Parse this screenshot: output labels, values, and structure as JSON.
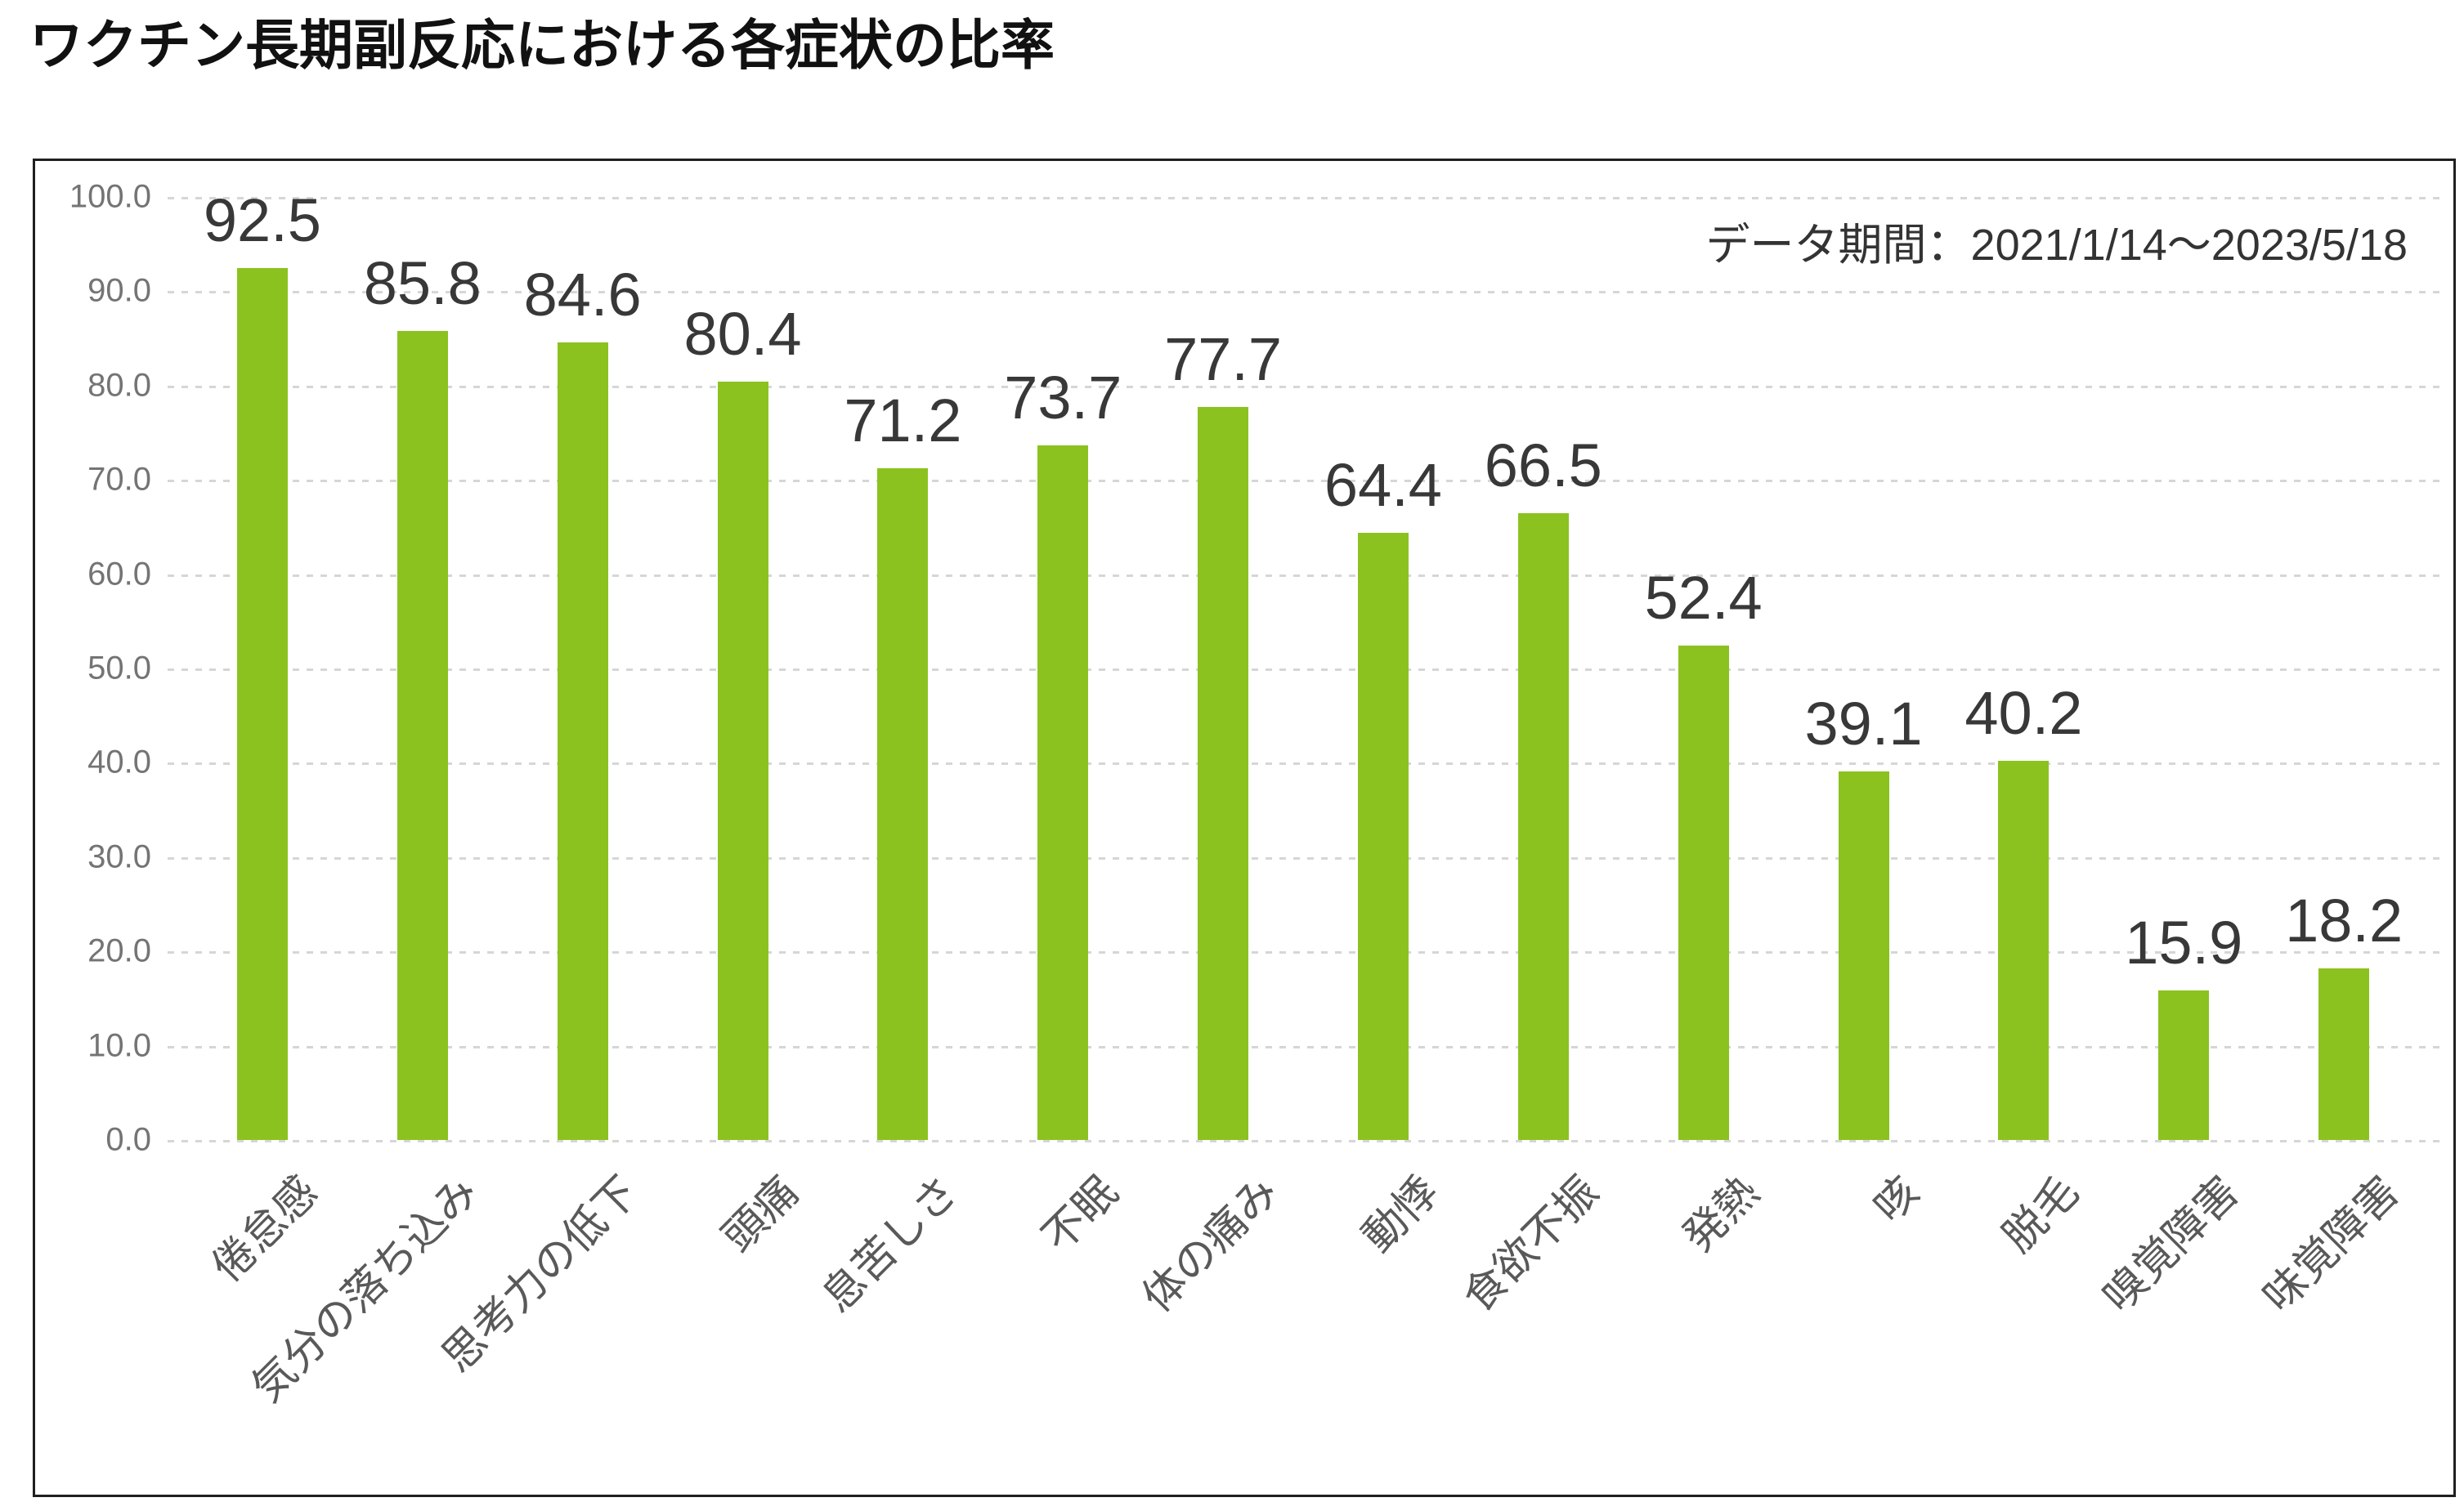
{
  "title": "ワクチン長期副反応における各症状の比率",
  "chart_data": {
    "type": "bar",
    "title": "ワクチン長期副反応における各症状の比率",
    "annotation": "データ期間：2021/1/14～2023/5/18",
    "categories": [
      "倦怠感",
      "気分の落ち込み",
      "思考力の低下",
      "頭痛",
      "息苦しさ",
      "不眠",
      "体の痛み",
      "動悸",
      "食欲不振",
      "発熱",
      "咳",
      "脱毛",
      "嗅覚障害",
      "味覚障害"
    ],
    "values": [
      92.5,
      85.8,
      84.6,
      80.4,
      71.2,
      73.7,
      77.7,
      64.4,
      66.5,
      52.4,
      39.1,
      40.2,
      15.9,
      18.2
    ],
    "value_labels": [
      "92.5",
      "85.8",
      "84.6",
      "80.4",
      "71.2",
      "73.7",
      "77.7",
      "64.4",
      "66.5",
      "52.4",
      "39.1",
      "40.2",
      "15.9",
      "18.2"
    ],
    "xlabel": "",
    "ylabel": "",
    "ylim": [
      0,
      100
    ],
    "ytick_step": 10,
    "ytick_labels": [
      "0.0",
      "10.0",
      "20.0",
      "30.0",
      "40.0",
      "50.0",
      "60.0",
      "70.0",
      "80.0",
      "90.0",
      "100.0"
    ],
    "grid": "horizontal-dotted",
    "legend": "none",
    "bar_color": "#8cc21f",
    "gridline_color": "#d6d6d6",
    "value_label_color": "#383838",
    "ytick_color": "#747474",
    "category_label_color": "#595959",
    "frame_color": "#1f1f1f"
  }
}
